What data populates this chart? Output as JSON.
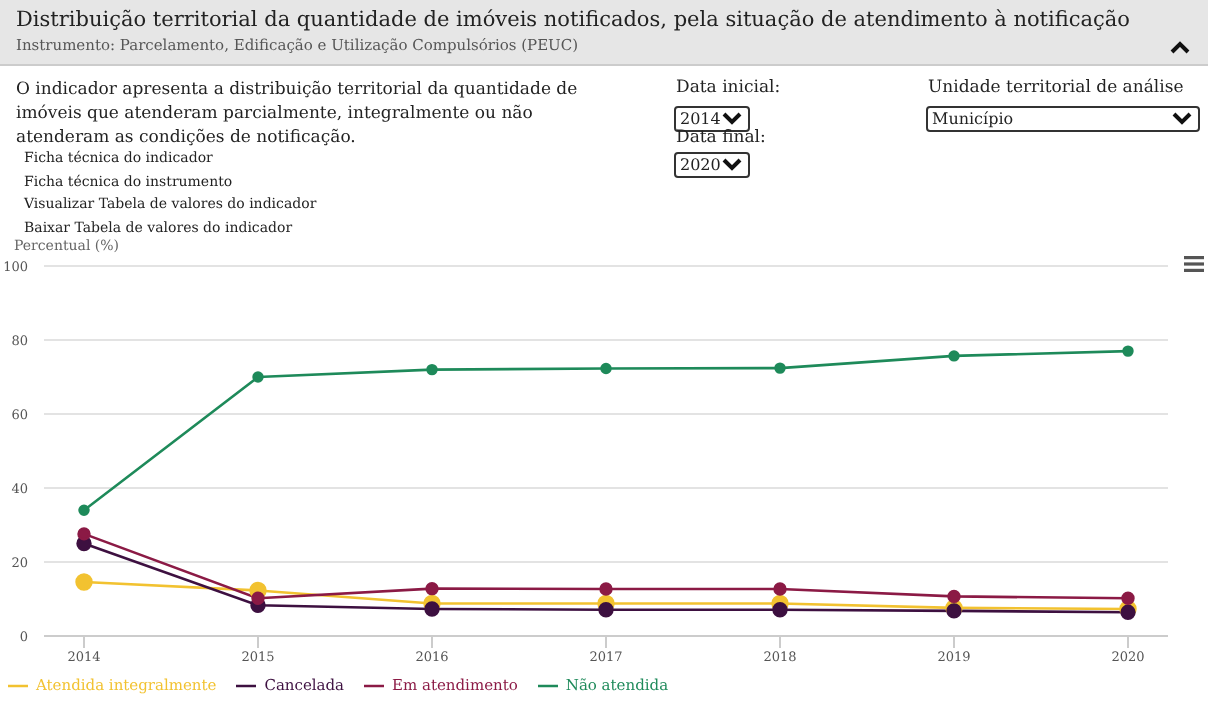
{
  "chart_data": {
    "type": "line",
    "title": "Distribuição territorial da quantidade de imóveis notificados, pela situação de atendimento à notificação",
    "subtitle": "Instrumento: Parcelamento, Edificação e Utilização Compulsórios (PEUC)",
    "ylabel": "Percentual (%)",
    "annotations": [
      "O indicador apresenta a distribuição territorial da quantidade de imóveis que atenderam parcialmente, integralmente ou não atenderam as condições de notificação.",
      "Ficha técnica do indicador",
      "Ficha técnica do instrumento",
      "Visualizar Tabela de valores do indicador",
      "Baixar Tabela de valores do indicador",
      "Data inicial:",
      "2014",
      "Data final:",
      "2020",
      "Unidade territorial de análise",
      "Município"
    ],
    "categories": [
      "2014",
      "2015",
      "2016",
      "2017",
      "2018",
      "2019",
      "2020"
    ],
    "series": [
      {
        "name": "Atendida integralmente",
        "color": "#f2c230",
        "values": [
          14.6,
          12.3,
          8.8,
          8.8,
          8.8,
          7.6,
          7.3
        ]
      },
      {
        "name": "Cancelada",
        "color": "#3d1040",
        "values": [
          25,
          8.3,
          7.3,
          7.1,
          7.1,
          6.8,
          6.4
        ]
      },
      {
        "name": "Em atendimento",
        "color": "#8b1a45",
        "values": [
          27.6,
          10.2,
          12.8,
          12.7,
          12.7,
          10.7,
          10.2
        ]
      },
      {
        "name": "Não atendida",
        "color": "#1e8a5a",
        "values": [
          34,
          70,
          72,
          72.3,
          72.4,
          75.7,
          77
        ]
      }
    ],
    "ylim": [
      0,
      100
    ],
    "yticks": [
      0,
      20,
      40,
      60,
      80,
      100
    ],
    "grid": "y",
    "legend": "bottom left",
    "marker": "circle",
    "line_style": "solid"
  }
}
